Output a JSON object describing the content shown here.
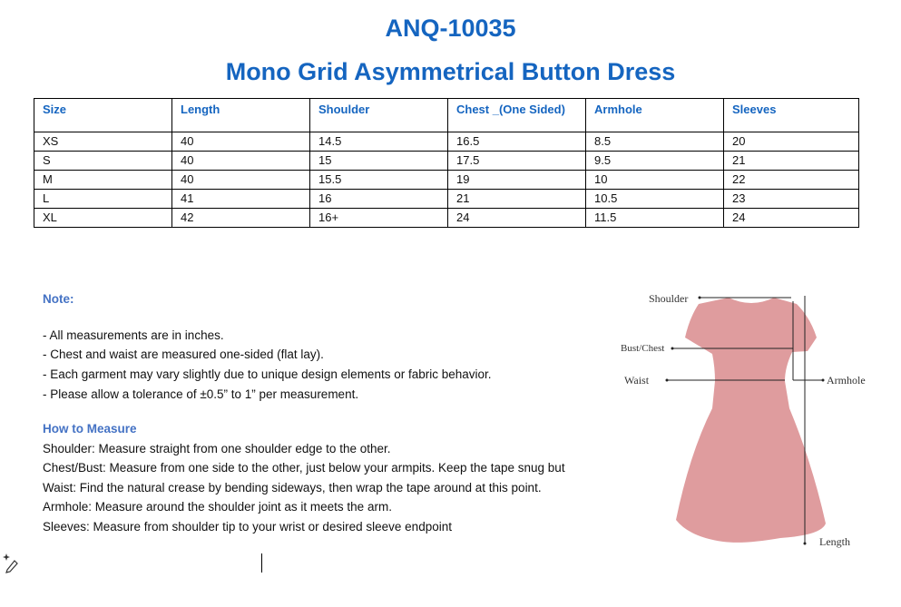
{
  "header": {
    "code": "ANQ-10035",
    "name": "Mono Grid Asymmetrical Button Dress"
  },
  "table": {
    "headers": [
      "Size",
      "Length",
      "Shoulder",
      "Chest _(One Sided)",
      "Armhole",
      "Sleeves"
    ],
    "rows": [
      [
        "XS",
        "40",
        "14.5",
        "16.5",
        "8.5",
        "20"
      ],
      [
        "S",
        "40",
        "15",
        "17.5",
        "9.5",
        "21"
      ],
      [
        "M",
        "40",
        "15.5",
        "19",
        "10",
        "22"
      ],
      [
        "L",
        "41",
        "16",
        "21",
        "10.5",
        "23"
      ],
      [
        "XL",
        "42",
        "16+",
        "24",
        "11.5",
        "24"
      ]
    ]
  },
  "note": {
    "heading": "Note:",
    "items": [
      "- All measurements are in inches.",
      "- Chest and waist are measured one-sided (flat lay).",
      "- Each garment may vary slightly due to unique design elements or fabric behavior.",
      "- Please allow a tolerance of ±0.5” to 1” per measurement."
    ]
  },
  "how": {
    "heading": "How to Measure",
    "items": [
      "Shoulder: Measure straight from one shoulder edge to the other.",
      "Chest/Bust: Measure from one side to the other, just below your armpits. Keep the tape snug but",
      "Waist: Find the natural crease by bending sideways, then wrap the tape around at this point.",
      "Armhole: Measure around the shoulder joint as it meets the arm.",
      "Sleeves: Measure from shoulder tip to your wrist or desired sleeve endpoint"
    ]
  },
  "diagram": {
    "labels": {
      "shoulder": "Shoulder",
      "bust": "Bust/Chest",
      "waist": "Waist",
      "armhole": "Armhole",
      "length": "Length"
    },
    "dress_color": "#df9c9e"
  },
  "colors": {
    "accent": "#1565c0",
    "subheading": "#4472c4"
  },
  "icons": {
    "editor": "sparkle-pen-icon"
  }
}
